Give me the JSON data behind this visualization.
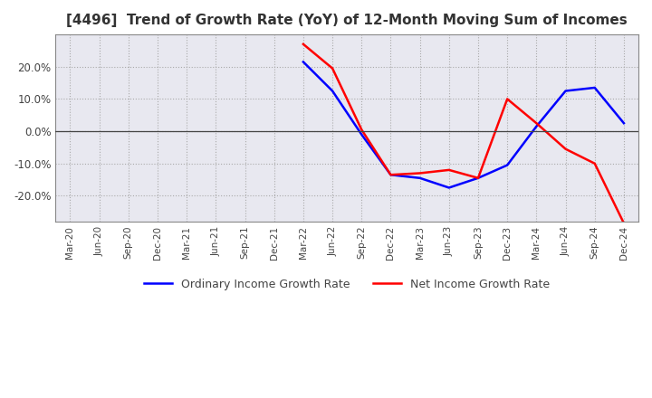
{
  "title": "[4496]  Trend of Growth Rate (YoY) of 12-Month Moving Sum of Incomes",
  "ordinary_income": {
    "dates": [
      "Mar-20",
      "Jun-20",
      "Sep-20",
      "Dec-20",
      "Mar-21",
      "Jun-21",
      "Sep-21",
      "Dec-21",
      "Mar-22",
      "Jun-22",
      "Sep-22",
      "Dec-22",
      "Mar-23",
      "Jun-23",
      "Sep-23",
      "Dec-23",
      "Mar-24",
      "Jun-24",
      "Sep-24",
      "Dec-24"
    ],
    "values": [
      null,
      null,
      null,
      null,
      null,
      null,
      null,
      null,
      0.215,
      0.125,
      -0.01,
      -0.135,
      -0.145,
      -0.175,
      -0.145,
      -0.105,
      0.015,
      0.125,
      0.135,
      0.025
    ]
  },
  "net_income": {
    "dates": [
      "Mar-20",
      "Jun-20",
      "Sep-20",
      "Dec-20",
      "Mar-21",
      "Jun-21",
      "Sep-21",
      "Dec-21",
      "Mar-22",
      "Jun-22",
      "Sep-22",
      "Dec-22",
      "Mar-23",
      "Jun-23",
      "Sep-23",
      "Dec-23",
      "Mar-24",
      "Jun-24",
      "Sep-24",
      "Dec-24"
    ],
    "values": [
      null,
      null,
      null,
      null,
      null,
      null,
      null,
      null,
      0.27,
      0.195,
      0.005,
      -0.135,
      -0.13,
      -0.12,
      -0.145,
      0.1,
      0.025,
      -0.055,
      -0.1,
      -0.285
    ]
  },
  "ordinary_color": "#0000ff",
  "net_color": "#ff0000",
  "ylim": [
    -0.28,
    0.3
  ],
  "yticks": [
    -0.2,
    -0.1,
    0.0,
    0.1,
    0.2
  ],
  "background_color": "#ffffff",
  "grid_color": "#bbbbbb",
  "title_fontsize": 11,
  "legend_ordinary": "Ordinary Income Growth Rate",
  "legend_net": "Net Income Growth Rate"
}
